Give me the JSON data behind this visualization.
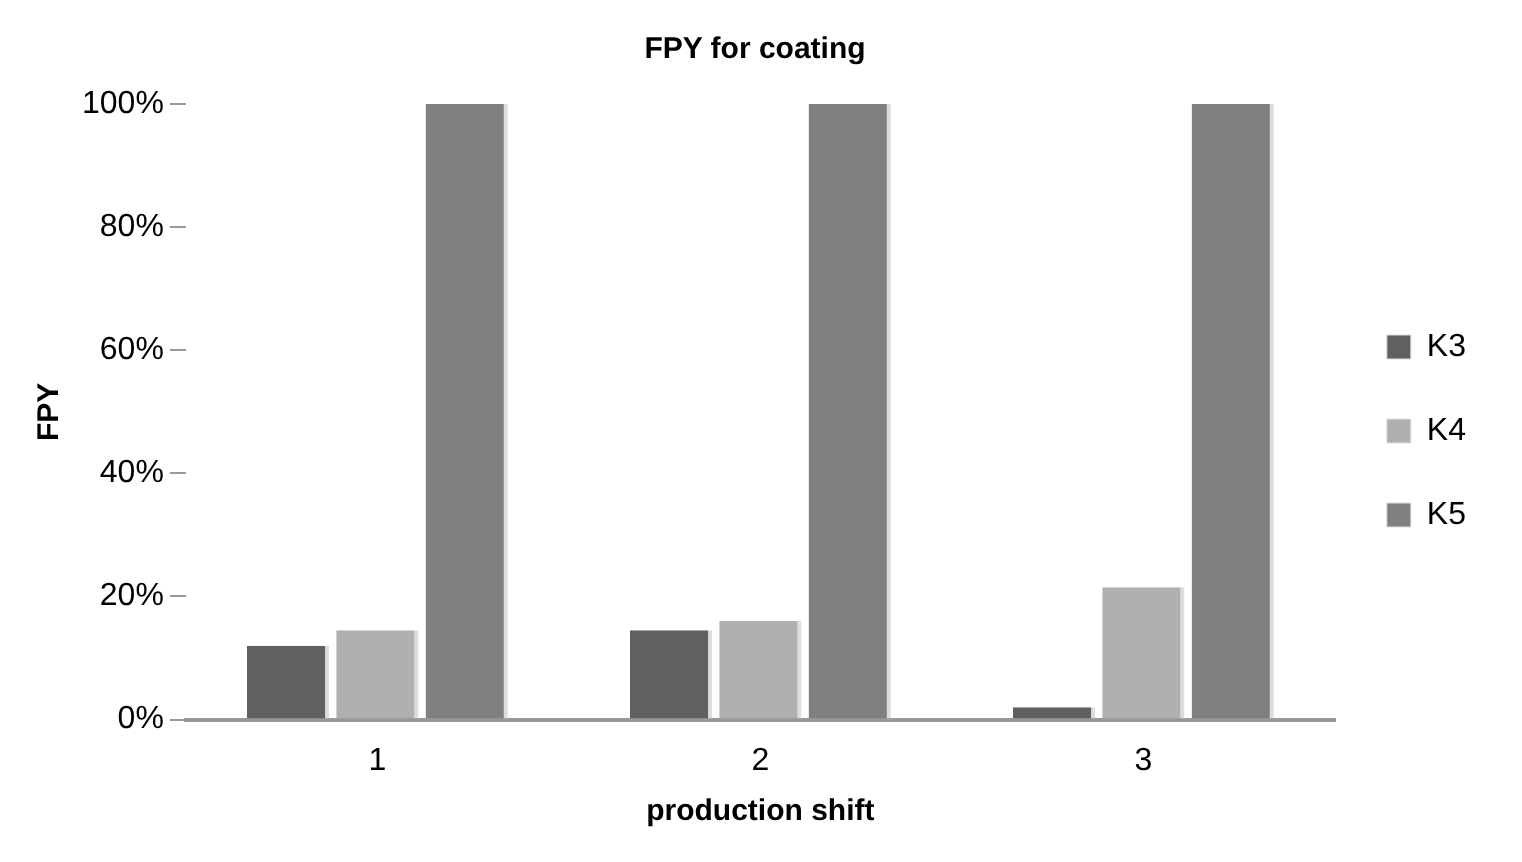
{
  "chart_data": {
    "type": "bar",
    "title": "FPY for coating",
    "xlabel": "production shift",
    "ylabel": "FPY",
    "categories": [
      "1",
      "2",
      "3"
    ],
    "series": [
      {
        "name": "K3",
        "color": "#5f605f",
        "values": [
          12,
          14.5,
          2
        ]
      },
      {
        "name": "K4",
        "color": "#b0b0b0",
        "values": [
          14.5,
          16,
          21.5
        ]
      },
      {
        "name": "K5",
        "color": "#808080",
        "values": [
          100,
          100,
          100
        ]
      }
    ],
    "ylim": [
      0,
      100
    ],
    "yticks": [
      {
        "value": 0,
        "label": "0%"
      },
      {
        "value": 20,
        "label": "20%"
      },
      {
        "value": 40,
        "label": "40%"
      },
      {
        "value": 60,
        "label": "60%"
      },
      {
        "value": 80,
        "label": "80%"
      },
      {
        "value": 100,
        "label": "100%"
      }
    ],
    "grid": false,
    "legend": "right"
  }
}
